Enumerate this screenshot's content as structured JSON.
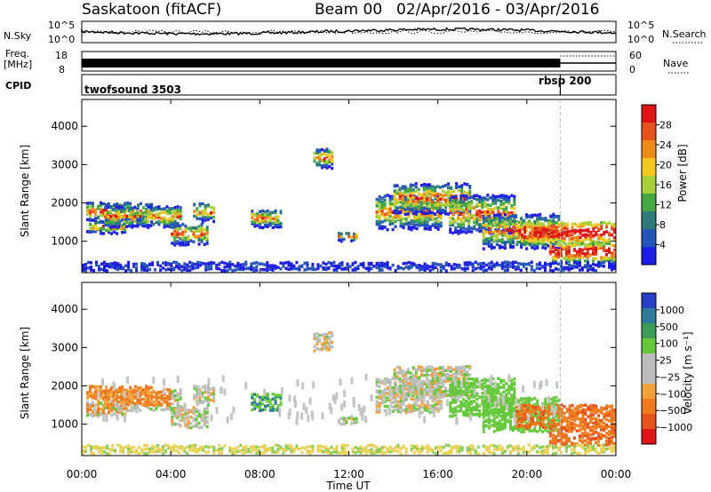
{
  "header": {
    "station": "Saskatoon (fitACF)",
    "beam": "Beam 00",
    "date_range": "02/Apr/2016 - 03/Apr/2016"
  },
  "top_panels": {
    "nsky": {
      "label": "N.Sky",
      "y_top": "10^5",
      "y_bottom": "10^0"
    },
    "nsearch": {
      "label": "N.Search",
      "y_top": "10^5",
      "y_bottom": "10^0"
    },
    "freq": {
      "label_line1": "Freq.",
      "label_line2": "[MHz]",
      "y_top": "18",
      "y_bottom": "8"
    },
    "nave": {
      "label": "Nave",
      "y_top": "60",
      "y_bottom": "0"
    },
    "cpid": {
      "label": "CPID",
      "programs": [
        {
          "name": "twofsound 3503",
          "start_hour": 0,
          "end_hour": 21.5
        },
        {
          "name": "rbsp 200",
          "start_hour": 21.5,
          "end_hour": 24
        }
      ]
    }
  },
  "x_axis": {
    "label": "Time UT",
    "ticks": [
      "00:00",
      "04:00",
      "08:00",
      "12:00",
      "16:00",
      "20:00",
      "00:00"
    ],
    "range_hours": [
      0,
      24
    ],
    "boundary_hour": 21.5
  },
  "chart_data": [
    {
      "type": "heatmap",
      "ylabel": "Slant Range [km]",
      "yticks": [
        "1000",
        "2000",
        "3000",
        "4000"
      ],
      "ylim": [
        180,
        4700
      ],
      "colorbar": {
        "label": "Power [dB]",
        "ticks": [
          "4",
          "8",
          "12",
          "16",
          "20",
          "24",
          "28"
        ],
        "colors": [
          "#1d1de6",
          "#2454b8",
          "#2d7a7a",
          "#44a844",
          "#a8cf3a",
          "#f4c81f",
          "#f08a1a",
          "#e8521c",
          "#e01414"
        ]
      }
    },
    {
      "type": "heatmap",
      "ylabel": "Slant Range [km]",
      "yticks": [
        "1000",
        "2000",
        "3000",
        "4000"
      ],
      "ylim": [
        180,
        4700
      ],
      "colorbar": {
        "label": "Velocity [m s⁻¹]",
        "ticks": [
          "1000",
          "500",
          "100",
          "25",
          "−25",
          "−100",
          "−500",
          "−1000"
        ],
        "colors": [
          "#2840c8",
          "#2e7a9a",
          "#3d9b5a",
          "#64c83a",
          "#bcbcbc",
          "#bcbcbc",
          "#f2a23a",
          "#f07a1c",
          "#e8521c",
          "#e01414"
        ]
      }
    }
  ]
}
